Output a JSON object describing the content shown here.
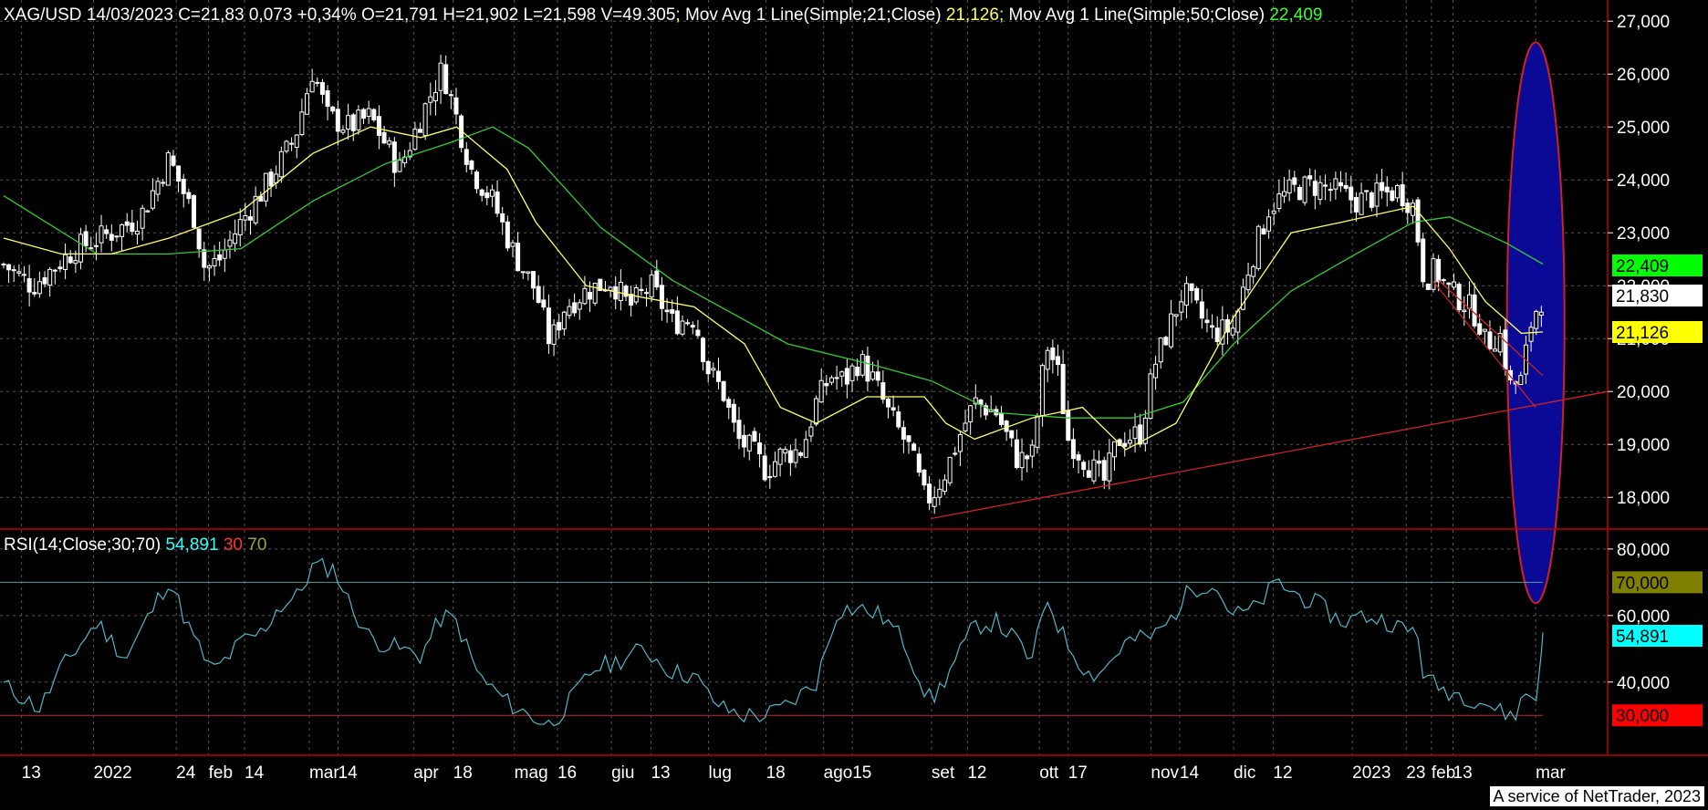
{
  "header": {
    "symbol": "XAG/USD",
    "date": "14/03/2023",
    "close": "C=21,83",
    "change": "0,073",
    "change_pct": "+0,34%",
    "open": "O=21,791",
    "high": "H=21,902",
    "low": "L=21,598",
    "volume": "V=49.305",
    "ma21_label": "Mov Avg 1 Line(Simple;21;Close)",
    "ma21_value": "21,126",
    "ma50_label": "Mov Avg 1 Line(Simple;50;Close)",
    "ma50_value": "22,409",
    "sep": ";"
  },
  "rsi_header": {
    "label": "RSI(14;Close;30;70)",
    "value": "54,891",
    "low": "30",
    "high": "70"
  },
  "footer": "A service of NetTrader, 2023",
  "colors": {
    "background": "#000000",
    "candles": "#ffffff",
    "ma21": "#ffff66",
    "ma50": "#33cc33",
    "rsi": "#4fb8c8",
    "trendline": "#cc2222",
    "ellipse_fill": "#0a0a96",
    "ellipse_stroke": "#cc2222",
    "grid": "#555555",
    "axis": "#c00000",
    "ma50_badge": "#00ff00",
    "last_badge": "#ffffff",
    "ma21_badge": "#ffff00",
    "rsi70_badge": "#808000",
    "rsi_badge": "#00ffff",
    "rsi30_badge": "#ff0000"
  },
  "chart_data": [
    {
      "type": "candlestick",
      "title": "XAG/USD",
      "y_ticks": [
        "27,000",
        "26,000",
        "25,000",
        "24,000",
        "23,000",
        "22,000",
        "21,000",
        "20,000",
        "19,000",
        "18,000"
      ],
      "y_tick_values": [
        27,
        26,
        25,
        24,
        23,
        22,
        21,
        20,
        19,
        18
      ],
      "ylim": [
        17.4,
        27.4
      ],
      "x_ticks": [
        "13",
        "2022",
        "24",
        "feb",
        "14",
        "mar",
        "14",
        "apr",
        "18",
        "mag",
        "16",
        "giu",
        "13",
        "lug",
        "18",
        "ago",
        "15",
        "set",
        "12",
        "ott",
        "17",
        "nov",
        "14",
        "dic",
        "12",
        "2023",
        "23",
        "feb",
        "13",
        "mar"
      ],
      "x_tick_days": [
        -1,
        19,
        42,
        51,
        61,
        79,
        87,
        108,
        119,
        136,
        148,
        163,
        174,
        190,
        206,
        222,
        230,
        252,
        262,
        282,
        290,
        313,
        321,
        336,
        347,
        369,
        384,
        391,
        397,
        420
      ],
      "x_range_days": [
        -7,
        440
      ],
      "series_keypoints": {
        "close": [
          [
            -6,
            22.4
          ],
          [
            2,
            22.0
          ],
          [
            14,
            22.7
          ],
          [
            24,
            23.0
          ],
          [
            32,
            23.3
          ],
          [
            40,
            24.4
          ],
          [
            47,
            23.3
          ],
          [
            50,
            22.3
          ],
          [
            54,
            22.5
          ],
          [
            60,
            23.2
          ],
          [
            68,
            24.0
          ],
          [
            75,
            24.8
          ],
          [
            80,
            26.1
          ],
          [
            84,
            25.2
          ],
          [
            90,
            25.0
          ],
          [
            96,
            25.2
          ],
          [
            104,
            24.2
          ],
          [
            112,
            25.5
          ],
          [
            116,
            26.1
          ],
          [
            119,
            25.4
          ],
          [
            124,
            24.2
          ],
          [
            130,
            23.6
          ],
          [
            136,
            22.6
          ],
          [
            142,
            21.9
          ],
          [
            146,
            20.9
          ],
          [
            150,
            21.6
          ],
          [
            156,
            21.9
          ],
          [
            163,
            22.1
          ],
          [
            168,
            21.6
          ],
          [
            174,
            22.0
          ],
          [
            180,
            21.3
          ],
          [
            186,
            21.4
          ],
          [
            190,
            20.4
          ],
          [
            194,
            20.0
          ],
          [
            198,
            19.1
          ],
          [
            202,
            18.9
          ],
          [
            206,
            18.5
          ],
          [
            210,
            18.8
          ],
          [
            216,
            18.9
          ],
          [
            220,
            19.8
          ],
          [
            224,
            20.3
          ],
          [
            228,
            20.2
          ],
          [
            232,
            20.6
          ],
          [
            236,
            20.2
          ],
          [
            240,
            19.6
          ],
          [
            246,
            18.9
          ],
          [
            250,
            18.0
          ],
          [
            252,
            18.0
          ],
          [
            256,
            18.5
          ],
          [
            260,
            19.2
          ],
          [
            264,
            19.8
          ],
          [
            270,
            19.6
          ],
          [
            276,
            18.7
          ],
          [
            280,
            18.8
          ],
          [
            284,
            20.9
          ],
          [
            287,
            20.4
          ],
          [
            290,
            19.1
          ],
          [
            296,
            18.6
          ],
          [
            300,
            18.3
          ],
          [
            304,
            19.1
          ],
          [
            310,
            19.2
          ],
          [
            314,
            20.5
          ],
          [
            318,
            21.2
          ],
          [
            322,
            21.9
          ],
          [
            330,
            21.1
          ],
          [
            336,
            21.2
          ],
          [
            340,
            22.3
          ],
          [
            346,
            23.5
          ],
          [
            352,
            23.8
          ],
          [
            358,
            23.9
          ],
          [
            364,
            23.8
          ],
          [
            370,
            23.6
          ],
          [
            376,
            23.7
          ],
          [
            382,
            23.8
          ],
          [
            386,
            23.5
          ],
          [
            389,
            22.1
          ],
          [
            392,
            22.3
          ],
          [
            396,
            21.9
          ],
          [
            400,
            21.7
          ],
          [
            404,
            21.4
          ],
          [
            406,
            20.9
          ],
          [
            410,
            21.1
          ],
          [
            413,
            20.1
          ],
          [
            416,
            20.2
          ],
          [
            419,
            21.4
          ],
          [
            422,
            21.8
          ]
        ],
        "ma21": [
          [
            -6,
            22.9
          ],
          [
            10,
            22.6
          ],
          [
            24,
            22.6
          ],
          [
            40,
            22.9
          ],
          [
            60,
            23.4
          ],
          [
            80,
            24.5
          ],
          [
            96,
            25.0
          ],
          [
            110,
            24.8
          ],
          [
            120,
            25.0
          ],
          [
            134,
            24.2
          ],
          [
            142,
            23.2
          ],
          [
            156,
            22.0
          ],
          [
            170,
            21.8
          ],
          [
            186,
            21.6
          ],
          [
            200,
            20.9
          ],
          [
            210,
            19.7
          ],
          [
            220,
            19.4
          ],
          [
            234,
            19.9
          ],
          [
            250,
            19.9
          ],
          [
            256,
            19.4
          ],
          [
            264,
            19.1
          ],
          [
            280,
            19.5
          ],
          [
            294,
            19.7
          ],
          [
            306,
            18.9
          ],
          [
            320,
            19.4
          ],
          [
            336,
            21.4
          ],
          [
            352,
            23.0
          ],
          [
            366,
            23.2
          ],
          [
            386,
            23.5
          ],
          [
            396,
            22.7
          ],
          [
            406,
            21.7
          ],
          [
            416,
            21.1
          ],
          [
            422,
            21.126
          ]
        ],
        "ma50": [
          [
            -6,
            23.7
          ],
          [
            20,
            22.6
          ],
          [
            40,
            22.6
          ],
          [
            60,
            22.7
          ],
          [
            80,
            23.6
          ],
          [
            100,
            24.3
          ],
          [
            118,
            24.7
          ],
          [
            130,
            25.0
          ],
          [
            140,
            24.6
          ],
          [
            160,
            23.1
          ],
          [
            180,
            22.1
          ],
          [
            196,
            21.5
          ],
          [
            212,
            20.9
          ],
          [
            236,
            20.5
          ],
          [
            252,
            20.2
          ],
          [
            270,
            19.6
          ],
          [
            290,
            19.5
          ],
          [
            308,
            19.5
          ],
          [
            322,
            19.8
          ],
          [
            336,
            20.9
          ],
          [
            352,
            21.9
          ],
          [
            370,
            22.6
          ],
          [
            386,
            23.2
          ],
          [
            396,
            23.3
          ],
          [
            412,
            22.8
          ],
          [
            422,
            22.409
          ]
        ]
      },
      "annotations": {
        "support_line": [
          [
            252,
            17.6
          ],
          [
            440,
            20.0
          ]
        ],
        "channel_line": [
          [
            393,
            22.1
          ],
          [
            422,
            20.3
          ]
        ],
        "highlight_ellipse": {
          "center_day": 420,
          "center_price": 21.3,
          "span_days": 16,
          "span_price": 10.6
        }
      },
      "badges": [
        {
          "label": "22,409",
          "value": 22.409,
          "color_key": "ma50_badge"
        },
        {
          "label": "21,830",
          "value": 21.83,
          "color_key": "last_badge"
        },
        {
          "label": "21,126",
          "value": 21.126,
          "color_key": "ma21_badge"
        }
      ],
      "series": [
        {
          "name": "Mov Avg 1 Line(Simple;21;Close)",
          "color_key": "ma21"
        },
        {
          "name": "Mov Avg 1 Line(Simple;50;Close)",
          "color_key": "ma50"
        }
      ]
    },
    {
      "type": "line",
      "title": "RSI(14;Close;30;70)",
      "y_ticks": [
        "80,000",
        "60,000",
        "40,000"
      ],
      "y_tick_values": [
        80,
        60,
        40
      ],
      "ylim": [
        18,
        86
      ],
      "ref_lines": [
        70,
        30
      ],
      "series": [
        {
          "name": "RSI(14;Close;30;70)",
          "color_key": "rsi",
          "keypoints": [
            [
              -6,
              39
            ],
            [
              0,
              35
            ],
            [
              4,
              32
            ],
            [
              10,
              44
            ],
            [
              20,
              58
            ],
            [
              28,
              47
            ],
            [
              40,
              71
            ],
            [
              46,
              55
            ],
            [
              52,
              43
            ],
            [
              56,
              47
            ],
            [
              60,
              52
            ],
            [
              66,
              55
            ],
            [
              70,
              62
            ],
            [
              76,
              66
            ],
            [
              80,
              75
            ],
            [
              86,
              74
            ],
            [
              90,
              64
            ],
            [
              96,
              53
            ],
            [
              104,
              50
            ],
            [
              110,
              48
            ],
            [
              116,
              60
            ],
            [
              120,
              58
            ],
            [
              126,
              42
            ],
            [
              134,
              34
            ],
            [
              140,
              30
            ],
            [
              146,
              27
            ],
            [
              152,
              35
            ],
            [
              158,
              44
            ],
            [
              164,
              46
            ],
            [
              172,
              50
            ],
            [
              180,
              43
            ],
            [
              186,
              42
            ],
            [
              190,
              36
            ],
            [
              194,
              32
            ],
            [
              200,
              30
            ],
            [
              206,
              30
            ],
            [
              212,
              33
            ],
            [
              220,
              40
            ],
            [
              226,
              62
            ],
            [
              232,
              62
            ],
            [
              238,
              60
            ],
            [
              244,
              53
            ],
            [
              250,
              38
            ],
            [
              252,
              34
            ],
            [
              258,
              45
            ],
            [
              264,
              57
            ],
            [
              270,
              58
            ],
            [
              276,
              52
            ],
            [
              280,
              46
            ],
            [
              284,
              66
            ],
            [
              288,
              55
            ],
            [
              292,
              48
            ],
            [
              296,
              42
            ],
            [
              300,
              44
            ],
            [
              306,
              52
            ],
            [
              314,
              54
            ],
            [
              318,
              58
            ],
            [
              324,
              68
            ],
            [
              330,
              70
            ],
            [
              336,
              60
            ],
            [
              342,
              62
            ],
            [
              348,
              70
            ],
            [
              354,
              66
            ],
            [
              360,
              63
            ],
            [
              366,
              58
            ],
            [
              372,
              60
            ],
            [
              380,
              58
            ],
            [
              384,
              55
            ],
            [
              387,
              56
            ],
            [
              389,
              41
            ],
            [
              394,
              38
            ],
            [
              400,
              36
            ],
            [
              406,
              34
            ],
            [
              410,
              31
            ],
            [
              414,
              30
            ],
            [
              418,
              38
            ],
            [
              420,
              33
            ],
            [
              422,
              54.891
            ]
          ]
        }
      ],
      "badges": [
        {
          "label": "70,000",
          "value": 70,
          "color_key": "rsi70_badge"
        },
        {
          "label": "54,891",
          "value": 54.891,
          "color_key": "rsi_badge"
        },
        {
          "label": "30,000",
          "value": 30,
          "color_key": "rsi30_badge"
        }
      ]
    }
  ]
}
